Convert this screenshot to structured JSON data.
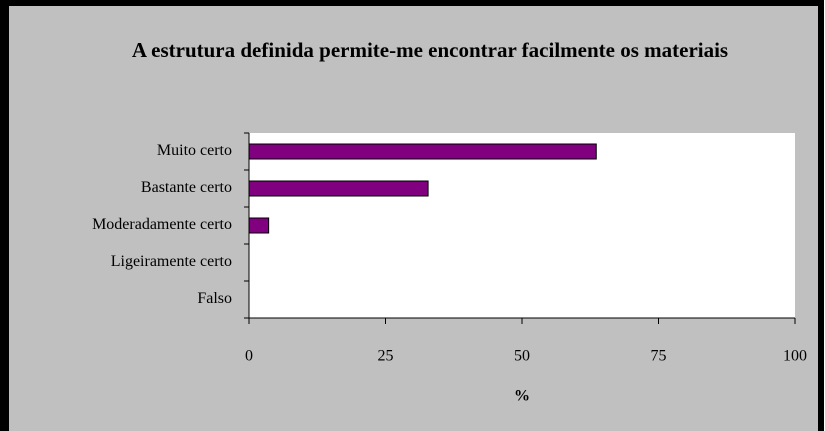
{
  "chart_data": {
    "type": "hbar",
    "title": "A estrutura definida permite-me encontrar facilmente os materiais",
    "categories": [
      "Muito certo",
      "Bastante certo",
      "Moderadamente certo",
      "Ligeiramente certo",
      "Falso"
    ],
    "values": [
      63.6,
      32.8,
      3.6,
      0,
      0
    ],
    "color": "#800080",
    "xlabel": "%",
    "xlim": [
      0,
      100
    ],
    "xticks": [
      0,
      25,
      50,
      75,
      100
    ],
    "grid": false
  }
}
